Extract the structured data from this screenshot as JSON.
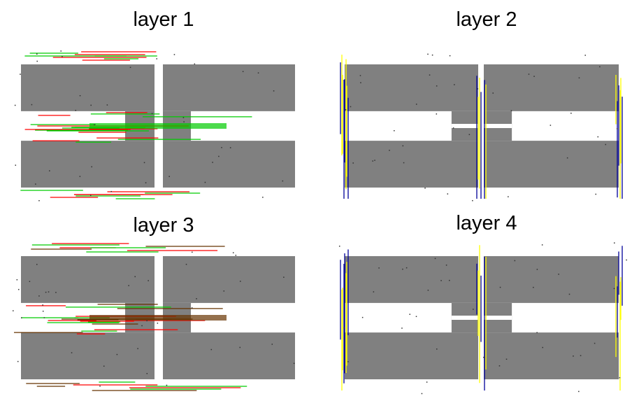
{
  "panels": [
    {
      "title": "layer 1",
      "variant": "horizontal",
      "trace_colors": [
        "#ff0000",
        "#00cc00"
      ]
    },
    {
      "title": "layer 2",
      "variant": "vertical",
      "trace_colors": [
        "#000099",
        "#ffff00"
      ]
    },
    {
      "title": "layer 3",
      "variant": "horizontal",
      "trace_colors": [
        "#ff0000",
        "#00cc00",
        "#663300"
      ]
    },
    {
      "title": "layer 4",
      "variant": "vertical",
      "trace_colors": [
        "#000099",
        "#ffff00"
      ]
    }
  ],
  "colors": {
    "metal": "#808080",
    "background": "#ffffff",
    "dot": "#333333"
  }
}
